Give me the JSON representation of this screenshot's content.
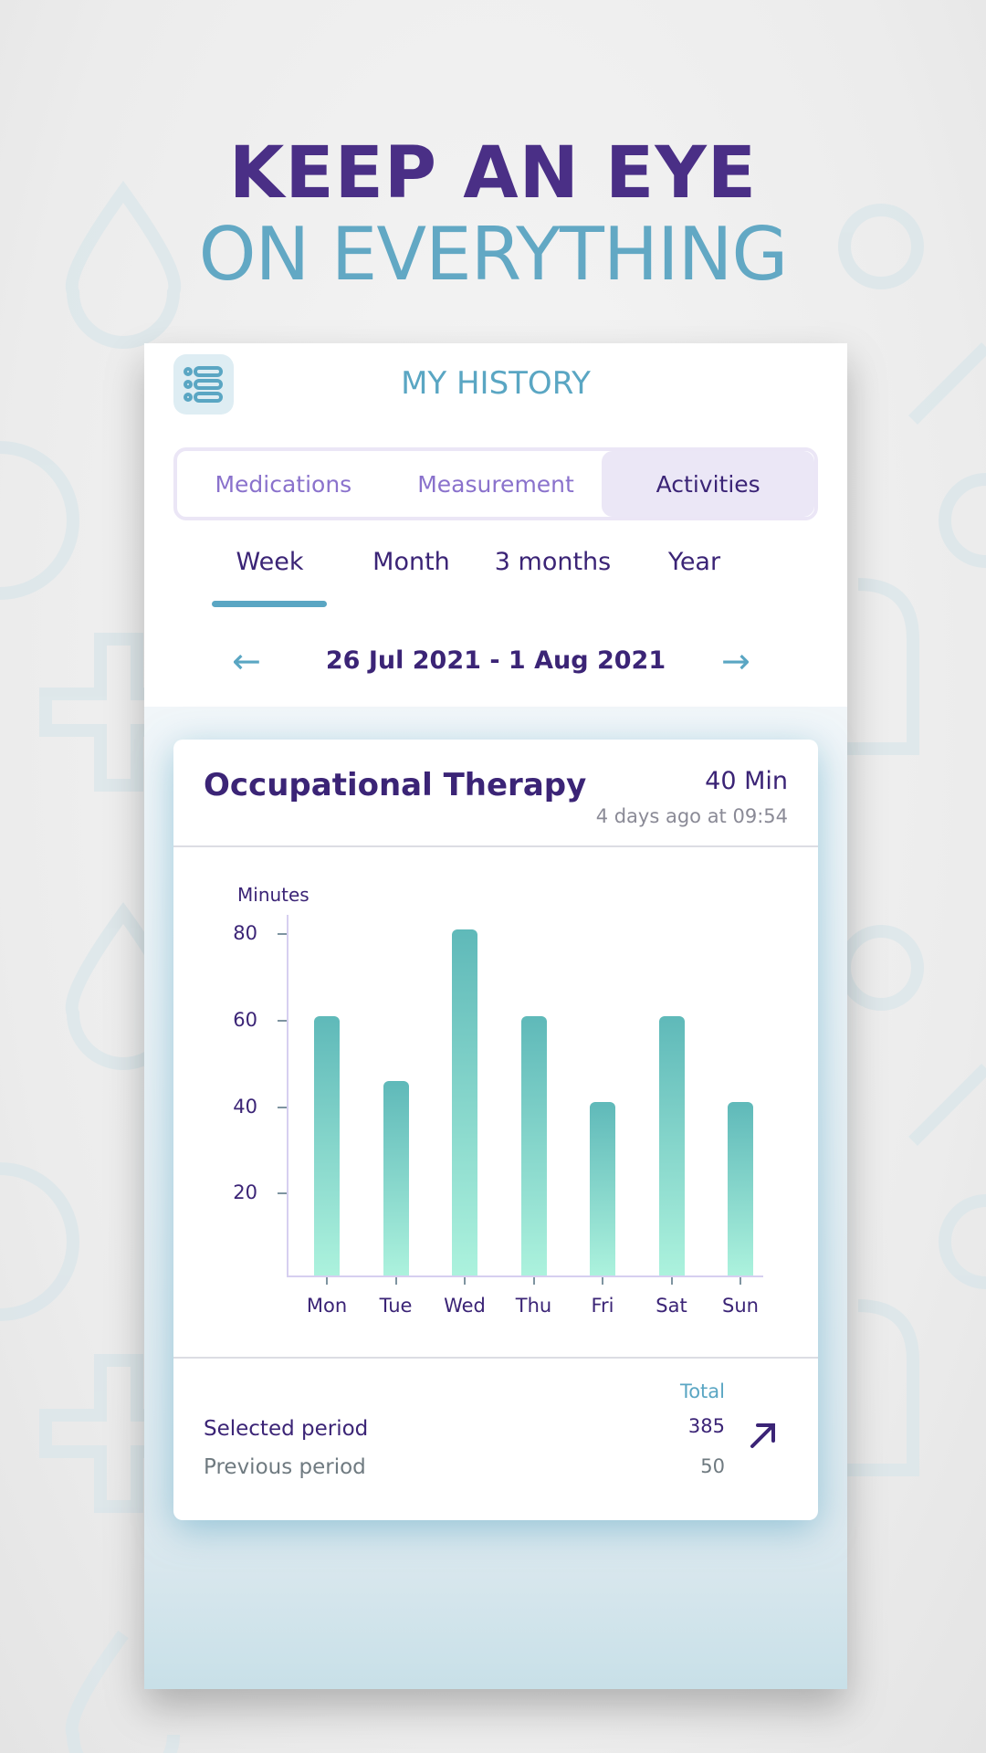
{
  "headline": {
    "line1": "KEEP AN EYE",
    "line2": "ON EVERYTHING"
  },
  "app": {
    "title": "MY HISTORY",
    "menu_icon": "list-icon",
    "categories": [
      {
        "label": "Medications",
        "active": false
      },
      {
        "label": "Measurement",
        "active": false
      },
      {
        "label": "Activities",
        "active": true
      }
    ],
    "periods": [
      {
        "label": "Week",
        "active": true
      },
      {
        "label": "Month",
        "active": false
      },
      {
        "label": "3 months",
        "active": false
      },
      {
        "label": "Year",
        "active": false
      }
    ],
    "date_range": "26 Jul 2021 - 1 Aug 2021",
    "prev_arrow": "←",
    "next_arrow": "→"
  },
  "card": {
    "title": "Occupational Therapy",
    "value": "40 Min",
    "time": "4 days ago at 09:54",
    "summary": {
      "total_label": "Total",
      "selected_label": "Selected period",
      "selected_value": "385",
      "previous_label": "Previous period",
      "previous_value": "50",
      "trend_icon": "arrow-up-right-icon"
    }
  },
  "colors": {
    "primary_purple": "#3b2476",
    "accent_blue": "#5aa6c3",
    "bar_top": "#5fb9b9",
    "bar_bottom": "#acf2dd",
    "tab_active_bg": "#ebe7f6"
  },
  "chart_data": {
    "type": "bar",
    "title": "Occupational Therapy",
    "categories": [
      "Mon",
      "Tue",
      "Wed",
      "Thu",
      "Fri",
      "Sat",
      "Sun"
    ],
    "values": [
      60,
      45,
      80,
      60,
      40,
      60,
      40
    ],
    "xlabel": "",
    "ylabel": "Minutes",
    "yticks": [
      20,
      40,
      60,
      80
    ],
    "ylim": [
      0,
      85
    ],
    "grid": false,
    "legend": "none"
  }
}
